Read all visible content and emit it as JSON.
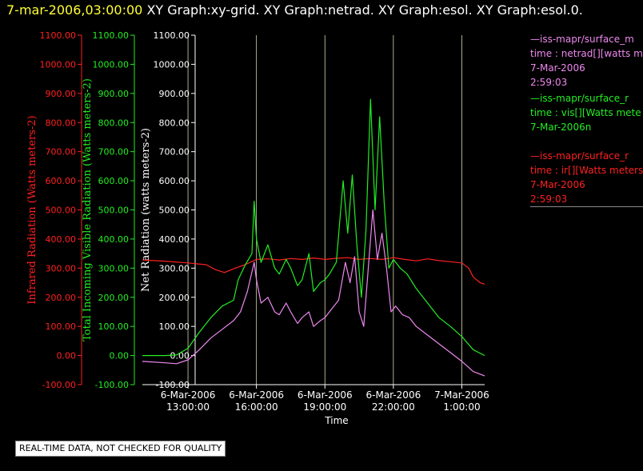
{
  "header": {
    "timestamp": "7-mar-2006,03:00:00",
    "graph_titles": "XY Graph:xy-grid.  XY Graph:netrad.  XY Graph:esol.  XY Graph:esol.0."
  },
  "colors": {
    "background": "#000000",
    "timestamp": "#ffff33",
    "infrared": "#ff2020",
    "visible": "#22ee22",
    "netrad": "#ee88ee",
    "axes_neutral": "#ffffff",
    "gridline": "#d8d8b0"
  },
  "legend": [
    {
      "line1": "—iss-mapr/surface_m",
      "line2": "time : netrad[][watts me",
      "line3": "7-Mar-2006",
      "line4": "2:59:03",
      "color": "#ee88ee"
    },
    {
      "line1": "—iss-mapr/surface_r",
      "line2": "time : vis[][Watts mete",
      "line3": "7-Mar-2006n",
      "line4": "",
      "color": "#22ee22"
    },
    {
      "line1": "—iss-mapr/surface_r",
      "line2": "time : ir[][Watts meters",
      "line3": "7-Mar-2006",
      "line4": "2:59:03",
      "color": "#ff2020"
    }
  ],
  "quality_note": "REAL-TIME DATA, NOT CHECKED FOR QUALITY",
  "chart_data": {
    "type": "line",
    "xlabel": "Time",
    "x_range_hours": [
      11.0,
      26.0
    ],
    "x_tick_hours": [
      13,
      16,
      19,
      22,
      25
    ],
    "x_tick_labels": [
      [
        "6-Mar-2006",
        "13:00:00"
      ],
      [
        "6-Mar-2006",
        "16:00:00"
      ],
      [
        "6-Mar-2006",
        "19:00:00"
      ],
      [
        "6-Mar-2006",
        "22:00:00"
      ],
      [
        "7-Mar-2006",
        "1:00:00"
      ]
    ],
    "grid": "vertical lines at x ticks",
    "y_axes": [
      {
        "label": "Infrared Radiation (Watts meters-2)",
        "range": [
          -100,
          1100
        ],
        "color": "#ff2020",
        "tick_values": [
          -100,
          0,
          100,
          200,
          300,
          400,
          500,
          600,
          700,
          800,
          900,
          1000,
          1100
        ],
        "tick_labels": [
          "-100.00",
          "0.00",
          "100.00",
          "200.00",
          "300.00",
          "400.00",
          "500.00",
          "600.00",
          "700.00",
          "800.00",
          "900.00",
          "1000.00",
          "1100.00"
        ]
      },
      {
        "label": "Total Incoming Visible Radiation (Watts meters-2)",
        "range": [
          -100,
          1100
        ],
        "color": "#22ee22",
        "tick_values": [
          -100,
          0,
          100,
          200,
          300,
          400,
          500,
          600,
          700,
          800,
          900,
          1000,
          1100
        ],
        "tick_labels": [
          "-100.00",
          "0.00",
          "100.00",
          "200.00",
          "300.00",
          "400.00",
          "500.00",
          "600.00",
          "700.00",
          "800.00",
          "900.00",
          "1000.00",
          "1100.00"
        ]
      },
      {
        "label": "Net Radiation (watts meters-2)",
        "range": [
          -100,
          1100
        ],
        "color": "#ffffff",
        "tick_values": [
          -100,
          0,
          100,
          200,
          300,
          400,
          500,
          600,
          700,
          800,
          900,
          1000,
          1100
        ],
        "tick_labels": [
          "-100.00",
          "0.00",
          "100.00",
          "200.00",
          "300.00",
          "400.00",
          "500.00",
          "600.00",
          "700.00",
          "800.00",
          "900.00",
          "1000.00",
          "1100.00"
        ]
      }
    ],
    "series": [
      {
        "key": "ir",
        "color": "#ff2020",
        "points": [
          [
            11.0,
            328
          ],
          [
            12.0,
            324
          ],
          [
            13.0,
            318
          ],
          [
            13.8,
            312
          ],
          [
            14.2,
            295
          ],
          [
            14.6,
            285
          ],
          [
            15.0,
            298
          ],
          [
            15.5,
            312
          ],
          [
            16.0,
            330
          ],
          [
            16.5,
            332
          ],
          [
            17.0,
            328
          ],
          [
            17.5,
            333
          ],
          [
            18.0,
            330
          ],
          [
            18.5,
            335
          ],
          [
            19.0,
            330
          ],
          [
            19.5,
            334
          ],
          [
            20.0,
            336
          ],
          [
            20.5,
            330
          ],
          [
            21.0,
            333
          ],
          [
            21.5,
            330
          ],
          [
            22.0,
            336
          ],
          [
            22.5,
            330
          ],
          [
            23.0,
            325
          ],
          [
            23.5,
            332
          ],
          [
            24.0,
            326
          ],
          [
            24.5,
            322
          ],
          [
            25.0,
            318
          ],
          [
            25.3,
            300
          ],
          [
            25.5,
            270
          ],
          [
            25.8,
            250
          ],
          [
            26.0,
            245
          ]
        ]
      },
      {
        "key": "vis",
        "color": "#22ee22",
        "points": [
          [
            11.0,
            0
          ],
          [
            12.0,
            0
          ],
          [
            12.5,
            2
          ],
          [
            13.0,
            25
          ],
          [
            13.5,
            80
          ],
          [
            14.0,
            130
          ],
          [
            14.5,
            170
          ],
          [
            15.0,
            190
          ],
          [
            15.2,
            260
          ],
          [
            15.5,
            310
          ],
          [
            15.8,
            350
          ],
          [
            15.9,
            530
          ],
          [
            16.0,
            400
          ],
          [
            16.2,
            320
          ],
          [
            16.5,
            380
          ],
          [
            16.8,
            300
          ],
          [
            17.0,
            280
          ],
          [
            17.3,
            330
          ],
          [
            17.5,
            300
          ],
          [
            17.8,
            240
          ],
          [
            18.0,
            260
          ],
          [
            18.3,
            350
          ],
          [
            18.5,
            220
          ],
          [
            18.8,
            250
          ],
          [
            19.0,
            260
          ],
          [
            19.2,
            280
          ],
          [
            19.5,
            320
          ],
          [
            19.8,
            600
          ],
          [
            20.0,
            420
          ],
          [
            20.2,
            620
          ],
          [
            20.4,
            380
          ],
          [
            20.6,
            200
          ],
          [
            20.8,
            430
          ],
          [
            21.0,
            880
          ],
          [
            21.2,
            500
          ],
          [
            21.4,
            820
          ],
          [
            21.6,
            520
          ],
          [
            21.8,
            300
          ],
          [
            22.0,
            330
          ],
          [
            22.3,
            300
          ],
          [
            22.6,
            280
          ],
          [
            23.0,
            230
          ],
          [
            23.5,
            180
          ],
          [
            24.0,
            130
          ],
          [
            24.5,
            100
          ],
          [
            25.0,
            65
          ],
          [
            25.5,
            20
          ],
          [
            26.0,
            0
          ]
        ]
      },
      {
        "key": "netrad",
        "color": "#ee88ee",
        "points": [
          [
            11.0,
            -20
          ],
          [
            12.0,
            -25
          ],
          [
            12.5,
            -28
          ],
          [
            13.0,
            -15
          ],
          [
            13.5,
            20
          ],
          [
            14.0,
            60
          ],
          [
            14.5,
            90
          ],
          [
            15.0,
            120
          ],
          [
            15.3,
            150
          ],
          [
            15.6,
            220
          ],
          [
            15.9,
            320
          ],
          [
            16.0,
            260
          ],
          [
            16.2,
            180
          ],
          [
            16.5,
            200
          ],
          [
            16.8,
            150
          ],
          [
            17.0,
            140
          ],
          [
            17.3,
            180
          ],
          [
            17.5,
            150
          ],
          [
            17.8,
            110
          ],
          [
            18.0,
            130
          ],
          [
            18.3,
            150
          ],
          [
            18.5,
            100
          ],
          [
            18.8,
            120
          ],
          [
            19.0,
            130
          ],
          [
            19.3,
            160
          ],
          [
            19.6,
            190
          ],
          [
            19.9,
            320
          ],
          [
            20.1,
            250
          ],
          [
            20.3,
            340
          ],
          [
            20.5,
            150
          ],
          [
            20.7,
            100
          ],
          [
            20.9,
            300
          ],
          [
            21.1,
            500
          ],
          [
            21.3,
            330
          ],
          [
            21.5,
            420
          ],
          [
            21.7,
            300
          ],
          [
            21.9,
            150
          ],
          [
            22.1,
            170
          ],
          [
            22.4,
            140
          ],
          [
            22.7,
            130
          ],
          [
            23.0,
            100
          ],
          [
            23.5,
            70
          ],
          [
            24.0,
            40
          ],
          [
            24.5,
            10
          ],
          [
            25.0,
            -20
          ],
          [
            25.5,
            -55
          ],
          [
            26.0,
            -70
          ]
        ]
      }
    ]
  }
}
